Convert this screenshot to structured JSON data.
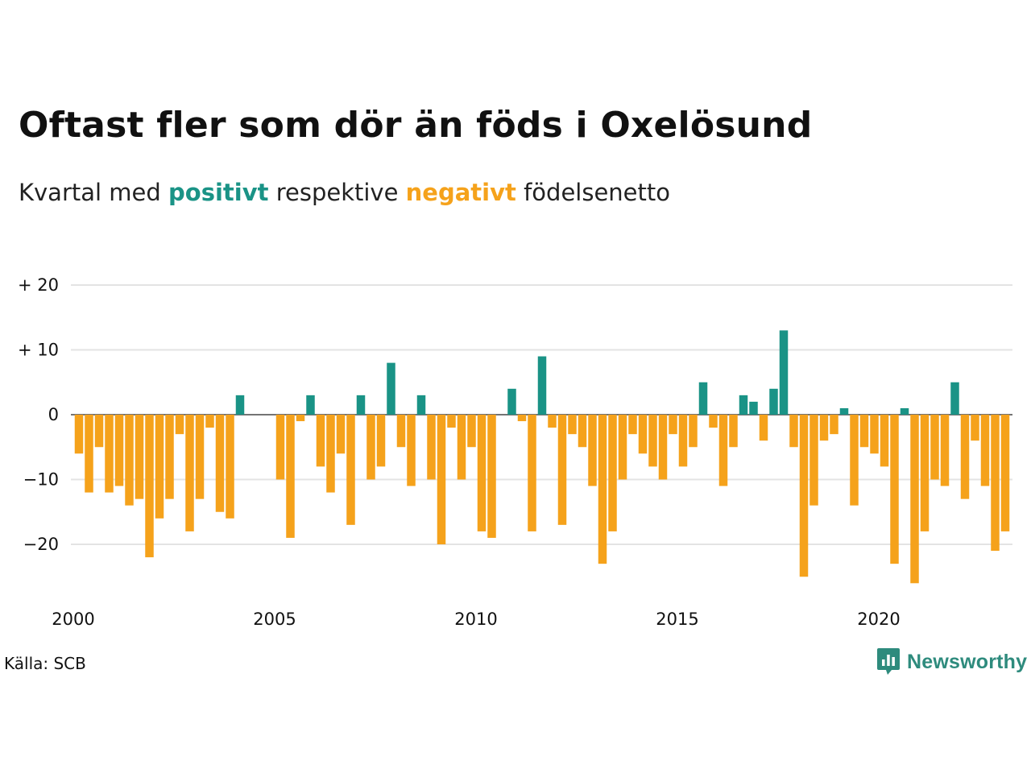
{
  "title": "Oftast fler som dör än föds i Oxelösund",
  "subtitle": {
    "prefix": "Kvartal med",
    "positive_word": "positivt",
    "middle": "respektive",
    "negative_word": "negativt",
    "suffix": "födelsenetto"
  },
  "source": "Källa: SCB",
  "brand": {
    "name": "Newsworthy",
    "icon": "newsworthy-logo-icon"
  },
  "colors": {
    "positive": "#1a9386",
    "negative": "#f5a21b",
    "grid": "#e3e3e3",
    "brand": "#2e8b7d"
  },
  "chart_data": {
    "type": "bar",
    "title": "Oftast fler som dör än föds i Oxelösund",
    "subtitle": "Kvartal med positivt respektive negativt födelsenetto",
    "xlabel": "",
    "ylabel": "",
    "x_start": "2000 Q1",
    "categories": [
      "2000 Q1",
      "2000 Q2",
      "2000 Q3",
      "2000 Q4",
      "2001 Q1",
      "2001 Q2",
      "2001 Q3",
      "2001 Q4",
      "2002 Q1",
      "2002 Q2",
      "2002 Q3",
      "2002 Q4",
      "2003 Q1",
      "2003 Q2",
      "2003 Q3",
      "2003 Q4",
      "2004 Q1",
      "2004 Q2",
      "2004 Q3",
      "2004 Q4",
      "2005 Q1",
      "2005 Q2",
      "2005 Q3",
      "2005 Q4",
      "2006 Q1",
      "2006 Q2",
      "2006 Q3",
      "2006 Q4",
      "2007 Q1",
      "2007 Q2",
      "2007 Q3",
      "2007 Q4",
      "2008 Q1",
      "2008 Q2",
      "2008 Q3",
      "2008 Q4",
      "2009 Q1",
      "2009 Q2",
      "2009 Q3",
      "2009 Q4",
      "2010 Q1",
      "2010 Q2",
      "2010 Q3",
      "2010 Q4",
      "2011 Q1",
      "2011 Q2",
      "2011 Q3",
      "2011 Q4",
      "2012 Q1",
      "2012 Q2",
      "2012 Q3",
      "2012 Q4",
      "2013 Q1",
      "2013 Q2",
      "2013 Q3",
      "2013 Q4",
      "2014 Q1",
      "2014 Q2",
      "2014 Q3",
      "2014 Q4",
      "2015 Q1",
      "2015 Q2",
      "2015 Q3",
      "2015 Q4",
      "2016 Q1",
      "2016 Q2",
      "2016 Q3",
      "2016 Q4",
      "2017 Q1",
      "2017 Q2",
      "2017 Q3",
      "2017 Q4",
      "2018 Q1",
      "2018 Q2",
      "2018 Q3",
      "2018 Q4",
      "2019 Q1",
      "2019 Q2",
      "2019 Q3",
      "2019 Q4",
      "2020 Q1",
      "2020 Q2",
      "2020 Q3",
      "2020 Q4",
      "2021 Q1",
      "2021 Q2",
      "2021 Q3",
      "2021 Q4",
      "2022 Q1",
      "2022 Q2",
      "2022 Q3",
      "2022 Q4",
      "2023 Q1",
      "2023 Q2",
      "2023 Q3",
      "2023 Q4"
    ],
    "values": [
      -6,
      -12,
      -5,
      -12,
      -11,
      -14,
      -13,
      -22,
      -16,
      -13,
      -3,
      -18,
      -13,
      -2,
      -15,
      -16,
      3,
      0,
      0,
      0,
      -10,
      -19,
      -1,
      3,
      -8,
      -12,
      -6,
      -17,
      3,
      -10,
      -8,
      8,
      -5,
      -11,
      3,
      -10,
      -20,
      -2,
      -10,
      -5,
      -18,
      -19,
      0,
      4,
      -1,
      -18,
      9,
      -2,
      -17,
      -3,
      -5,
      -11,
      -23,
      -18,
      -10,
      -3,
      -6,
      -8,
      -10,
      -3,
      -8,
      -5,
      5,
      -2,
      -11,
      -5,
      3,
      2,
      -4,
      4,
      13,
      -5,
      -25,
      -14,
      -4,
      -3,
      1,
      -14,
      -5,
      -6,
      -8,
      -23,
      1,
      -26,
      -18,
      -10,
      -11,
      5,
      -13,
      -4,
      -11,
      -21,
      -18,
      0,
      0,
      0
    ],
    "ylim": [
      -28,
      22
    ],
    "y_ticks": [
      {
        "value": 20,
        "label": "+ 20"
      },
      {
        "value": 10,
        "label": "+ 10"
      },
      {
        "value": 0,
        "label": "0"
      },
      {
        "value": -10,
        "label": "−10"
      },
      {
        "value": -20,
        "label": "−20"
      }
    ],
    "x_ticks": [
      "2000",
      "2005",
      "2010",
      "2015",
      "2020"
    ],
    "grid": true,
    "legend": "none"
  }
}
